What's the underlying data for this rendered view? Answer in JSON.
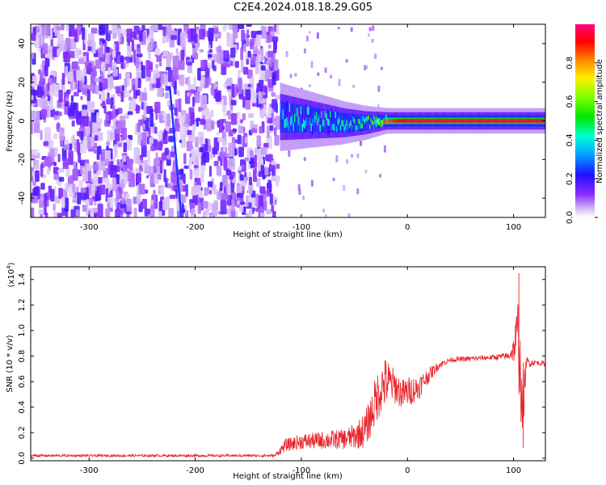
{
  "title": "C2E4.2024.018.18.29.G05",
  "colors": {
    "spectrogram_low": "#d9c4f5",
    "spectrogram_mid": "#6a00ff",
    "snr_line": "#e8232a",
    "axis": "#000000"
  },
  "chart_data": [
    {
      "type": "heatmap",
      "name": "spectrogram",
      "title": "C2E4.2024.018.18.29.G05",
      "xlabel": "Height of straight line (km)",
      "ylabel": "Frequency (Hz)",
      "xlim": [
        -355,
        130
      ],
      "ylim": [
        -50,
        50
      ],
      "xticks": [
        -300,
        -200,
        -100,
        0,
        100
      ],
      "yticks": [
        -40,
        -20,
        0,
        20,
        40
      ],
      "colorbar": {
        "label": "Normalized spectral amplitude",
        "range": [
          0.0,
          1.0
        ],
        "ticks": [
          0.0,
          0.2,
          0.4,
          0.6,
          0.8
        ],
        "tick_labels": [
          "0.0",
          "0.2",
          "0.4",
          "0.6",
          "0.8"
        ],
        "colormap": "rainbow"
      },
      "noise_region_x": [
        -355,
        -122
      ],
      "signal_band": [
        {
          "x": -120,
          "center": 2,
          "halfwidth": 8,
          "peak": 0.42
        },
        {
          "x": -100,
          "center": 1,
          "halfwidth": 7,
          "peak": 0.45
        },
        {
          "x": -80,
          "center": 0,
          "halfwidth": 6,
          "peak": 0.45
        },
        {
          "x": -60,
          "center": -1,
          "halfwidth": 5,
          "peak": 0.45
        },
        {
          "x": -40,
          "center": -1,
          "halfwidth": 4,
          "peak": 0.5
        },
        {
          "x": -20,
          "center": 0,
          "halfwidth": 3,
          "peak": 0.85
        },
        {
          "x": 0,
          "center": 0,
          "halfwidth": 3,
          "peak": 0.95
        },
        {
          "x": 20,
          "center": 0,
          "halfwidth": 3,
          "peak": 0.95
        },
        {
          "x": 60,
          "center": 0,
          "halfwidth": 3,
          "peak": 0.95
        },
        {
          "x": 100,
          "center": 0,
          "halfwidth": 3,
          "peak": 0.95
        },
        {
          "x": 130,
          "center": 0,
          "halfwidth": 3,
          "peak": 0.95
        }
      ],
      "streak": {
        "x": [
          -224,
          -213
        ],
        "y": [
          18,
          -50
        ],
        "value": 0.25
      }
    },
    {
      "type": "line",
      "name": "snr",
      "xlabel": "Height of straight line (km)",
      "ylabel": "SNR (10 * v/v)",
      "y_multiplier_label": "(x10",
      "y_multiplier_exp": "4",
      "y_multiplier_close": ")",
      "xlim": [
        -355,
        130
      ],
      "ylim": [
        -0.02,
        1.5
      ],
      "xticks": [
        -300,
        -200,
        -100,
        0,
        100
      ],
      "yticks": [
        0.0,
        0.2,
        0.4,
        0.6,
        0.8,
        1.0,
        1.2,
        1.4
      ],
      "ytick_labels": [
        "0.0",
        "0.2",
        "0.4",
        "0.6",
        "0.8",
        "1.0",
        "1.2",
        "1.4"
      ],
      "series": [
        {
          "x": [
            -355,
            -300,
            -200,
            -125,
            -115,
            -100,
            -80,
            -60,
            -50,
            -40,
            -35,
            -30,
            -25,
            -20,
            -15,
            -10,
            -5,
            0,
            10,
            20,
            30,
            40,
            60,
            80,
            95,
            100,
            105,
            108,
            112,
            120,
            130
          ],
          "y": [
            0.02,
            0.02,
            0.02,
            0.02,
            0.1,
            0.13,
            0.14,
            0.15,
            0.17,
            0.22,
            0.32,
            0.45,
            0.55,
            0.6,
            0.58,
            0.55,
            0.5,
            0.52,
            0.55,
            0.65,
            0.73,
            0.77,
            0.78,
            0.79,
            0.8,
            0.85,
            1.0,
            0.3,
            0.75,
            0.75,
            0.74
          ],
          "spread": [
            0.01,
            0.01,
            0.01,
            0.01,
            0.05,
            0.06,
            0.07,
            0.08,
            0.1,
            0.14,
            0.16,
            0.2,
            0.2,
            0.2,
            0.15,
            0.13,
            0.12,
            0.12,
            0.1,
            0.06,
            0.03,
            0.02,
            0.02,
            0.02,
            0.03,
            0.1,
            0.35,
            0.25,
            0.05,
            0.02,
            0.02
          ]
        }
      ]
    }
  ]
}
